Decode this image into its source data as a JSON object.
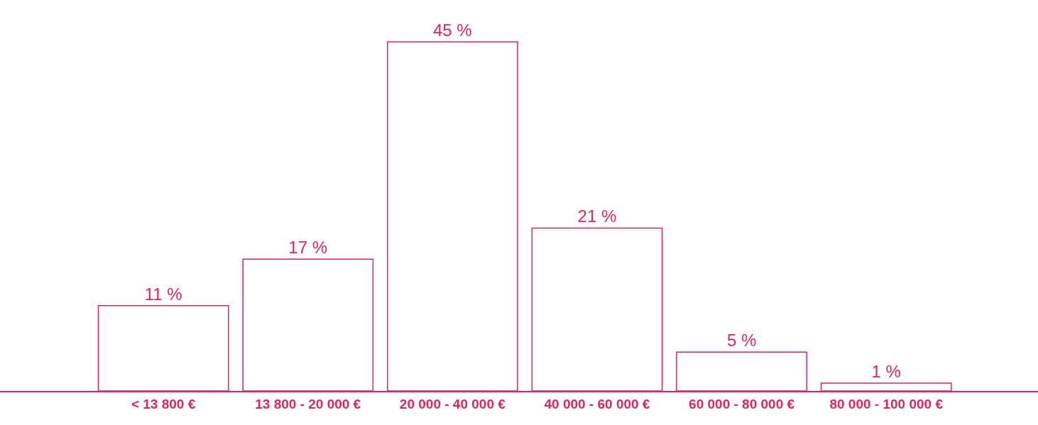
{
  "chart_data": {
    "type": "bar",
    "categories": [
      "< 13 800 €",
      "13 800 - 20 000 €",
      "20 000 - 40 000 €",
      "40 000 - 60 000 €",
      "60 000 - 80 000 €",
      "80 000 - 100 000 €"
    ],
    "values": [
      11,
      17,
      45,
      21,
      5,
      1
    ],
    "value_labels": [
      "11 %",
      "17 %",
      "45 %",
      "21 %",
      "5 %",
      "1 %"
    ],
    "color": "#e5245e"
  }
}
